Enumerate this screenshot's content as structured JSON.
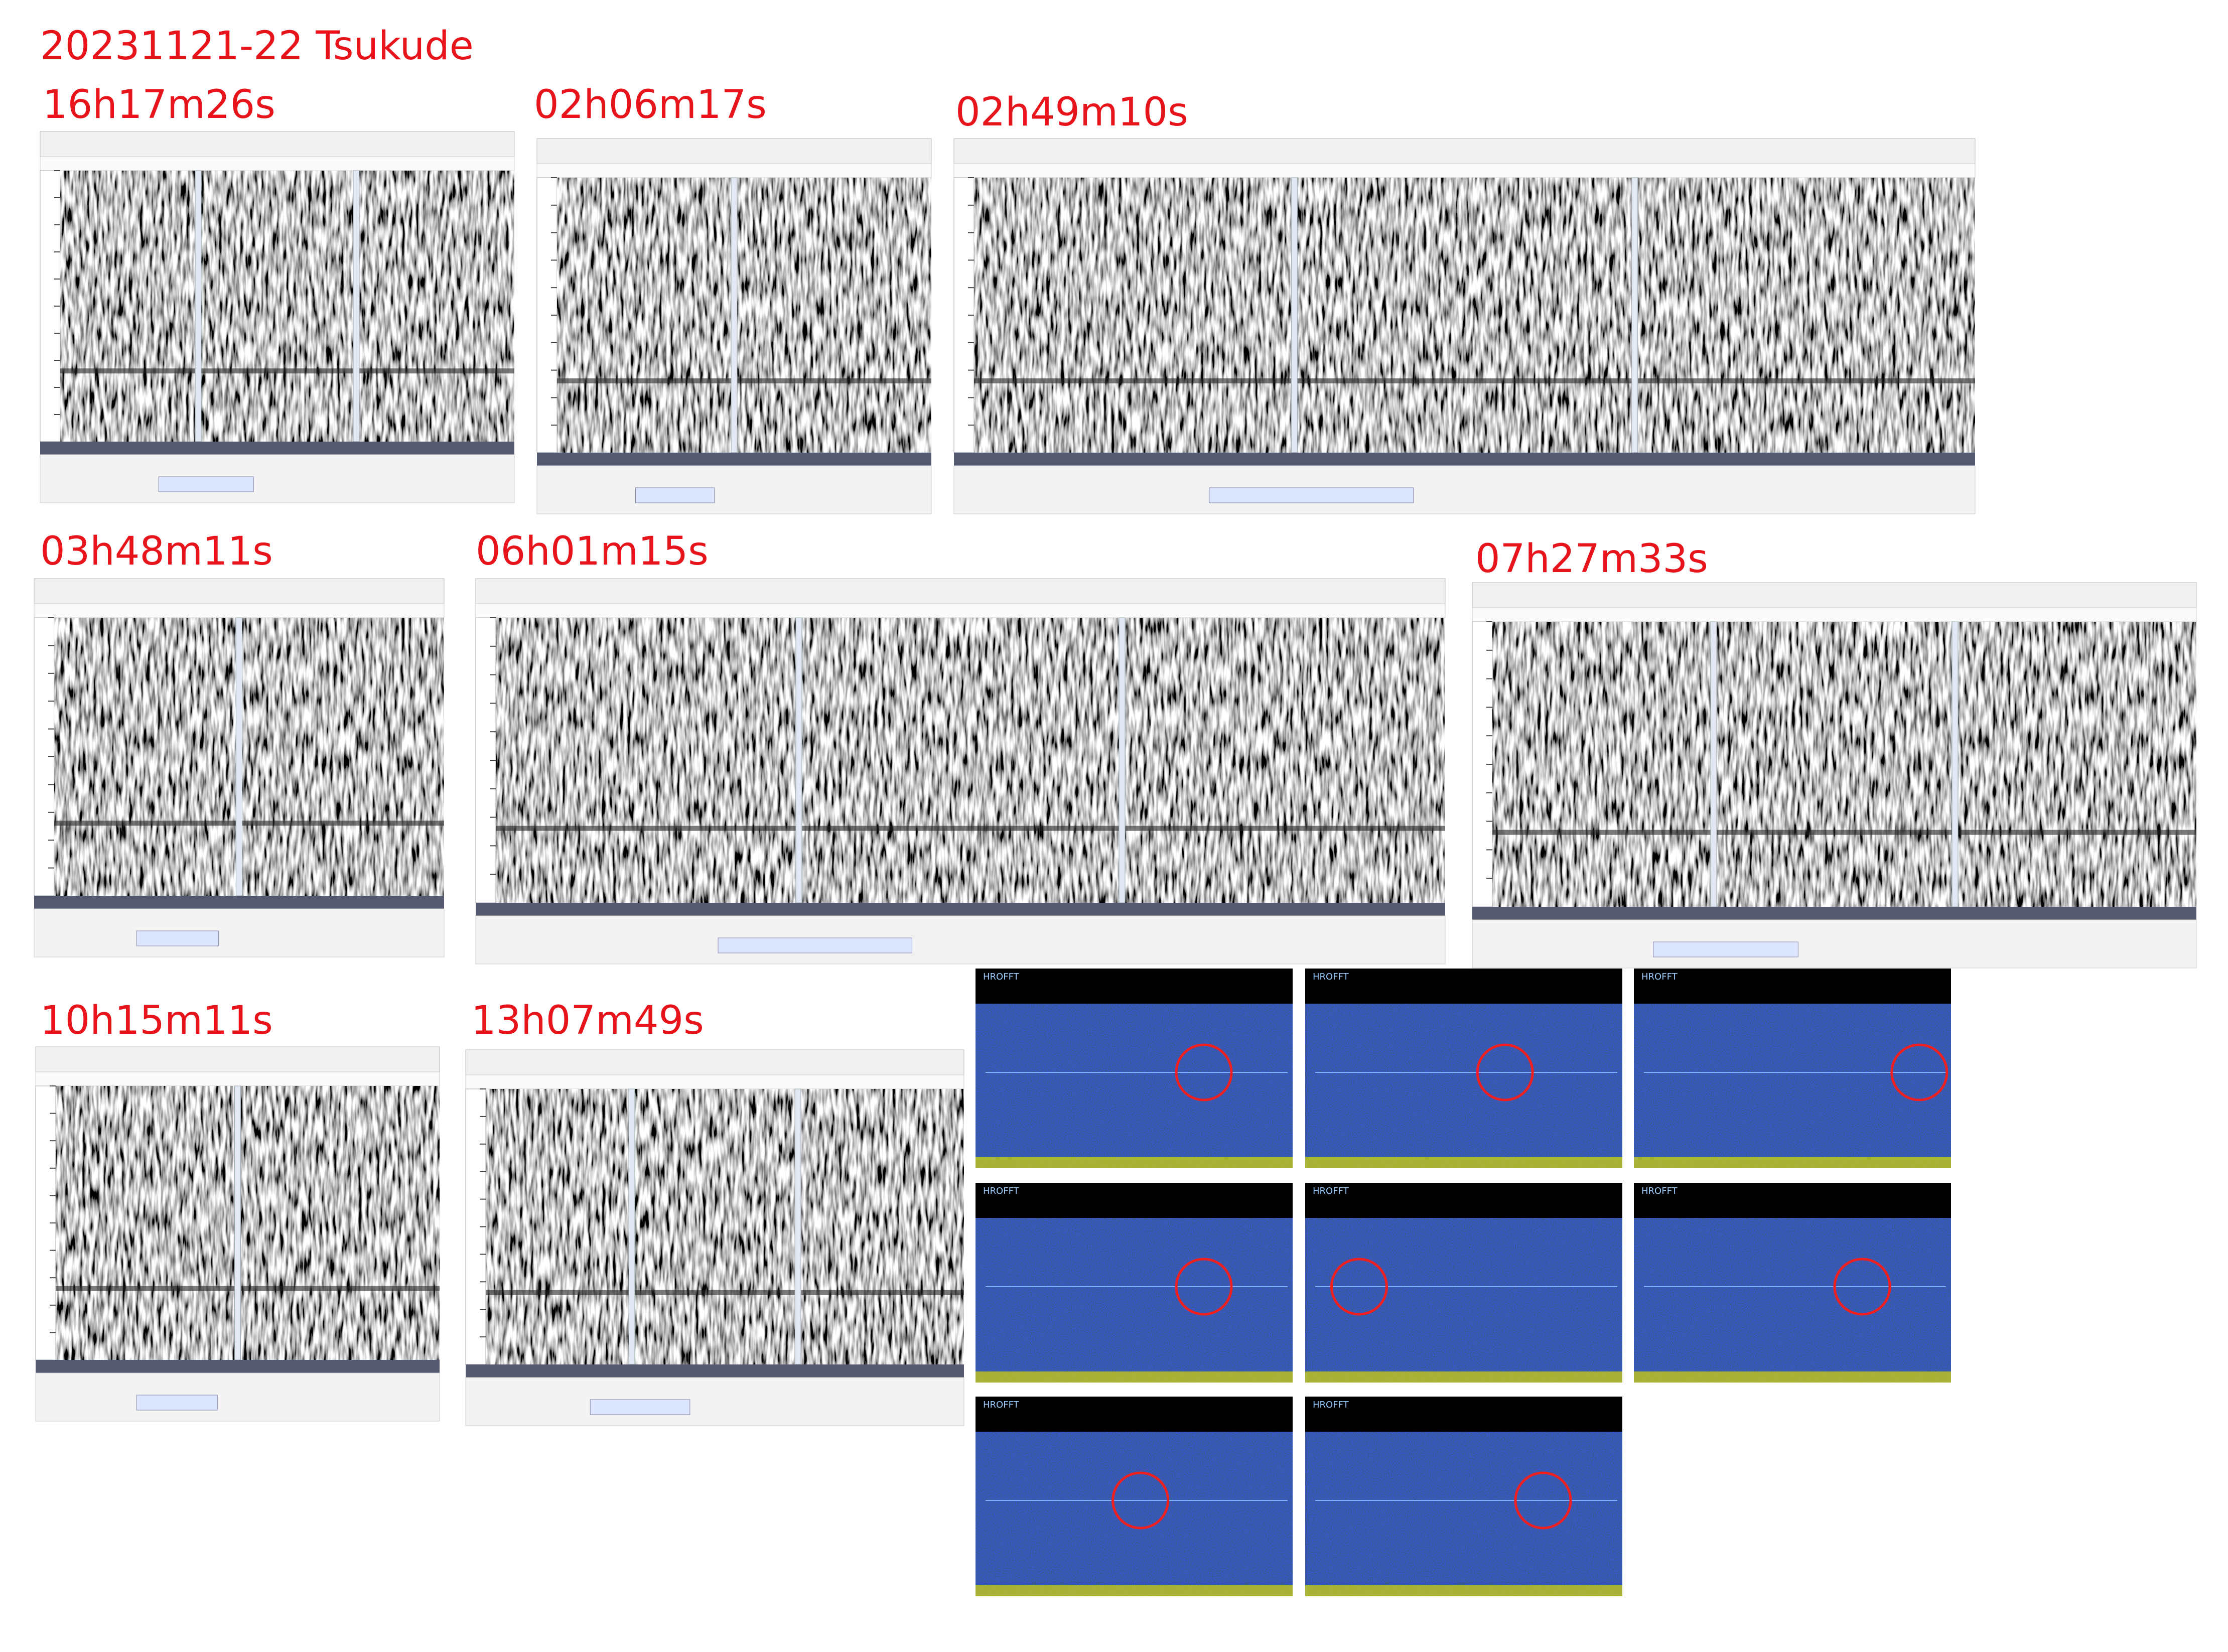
{
  "header": {
    "title": "20231121-22  Tsukude"
  },
  "captures": [
    {
      "label": "16h17m26s"
    },
    {
      "label": "02h06m17s"
    },
    {
      "label": "02h49m10s"
    },
    {
      "label": "03h48m11s"
    },
    {
      "label": "06h01m15s"
    },
    {
      "label": "07h27m33s"
    },
    {
      "label": "10h15m11s"
    },
    {
      "label": "13h07m49s"
    }
  ],
  "radar": {
    "title": "HROFFT"
  }
}
